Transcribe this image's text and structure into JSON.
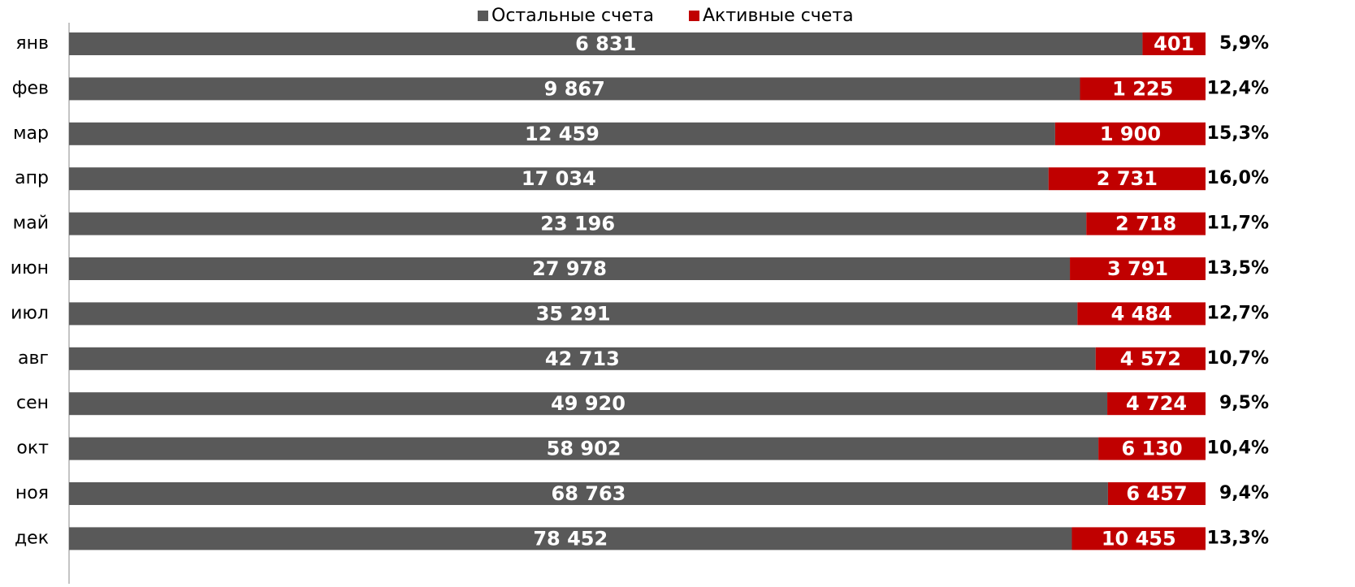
{
  "chart_data": {
    "type": "bar",
    "orientation": "horizontal",
    "stacked100": true,
    "categories": [
      "янв",
      "фев",
      "мар",
      "апр",
      "май",
      "июн",
      "июл",
      "авг",
      "сен",
      "окт",
      "ноя",
      "дек"
    ],
    "series": [
      {
        "name": "Остальные счета",
        "color": "#595959",
        "values": [
          6831,
          9867,
          12459,
          17034,
          23196,
          27978,
          35291,
          42713,
          49920,
          58902,
          68763,
          78452
        ],
        "value_labels": [
          "6 831",
          "9 867",
          "12 459",
          "17 034",
          "23 196",
          "27 978",
          "35 291",
          "42 713",
          "49 920",
          "58 902",
          "68 763",
          "78 452"
        ]
      },
      {
        "name": "Активные счета",
        "color": "#c00000",
        "values": [
          401,
          1225,
          1900,
          2731,
          2718,
          3791,
          4484,
          4572,
          4724,
          6130,
          6457,
          10455
        ],
        "value_labels": [
          "401",
          "1 225",
          "1 900",
          "2 731",
          "2 718",
          "3 791",
          "4 484",
          "4 572",
          "4 724",
          "6 130",
          "6 457",
          "10 455"
        ]
      }
    ],
    "right_values": [
      5.9,
      12.4,
      15.3,
      16.0,
      11.7,
      13.5,
      12.7,
      10.7,
      9.5,
      10.4,
      9.4,
      13.3
    ],
    "right_labels": [
      "5,9%",
      "12,4%",
      "15,3%",
      "16,0%",
      "11,7%",
      "13,5%",
      "12,7%",
      "10,7%",
      "9,5%",
      "10,4%",
      "9,4%",
      "13,3%"
    ],
    "legend": "top"
  }
}
